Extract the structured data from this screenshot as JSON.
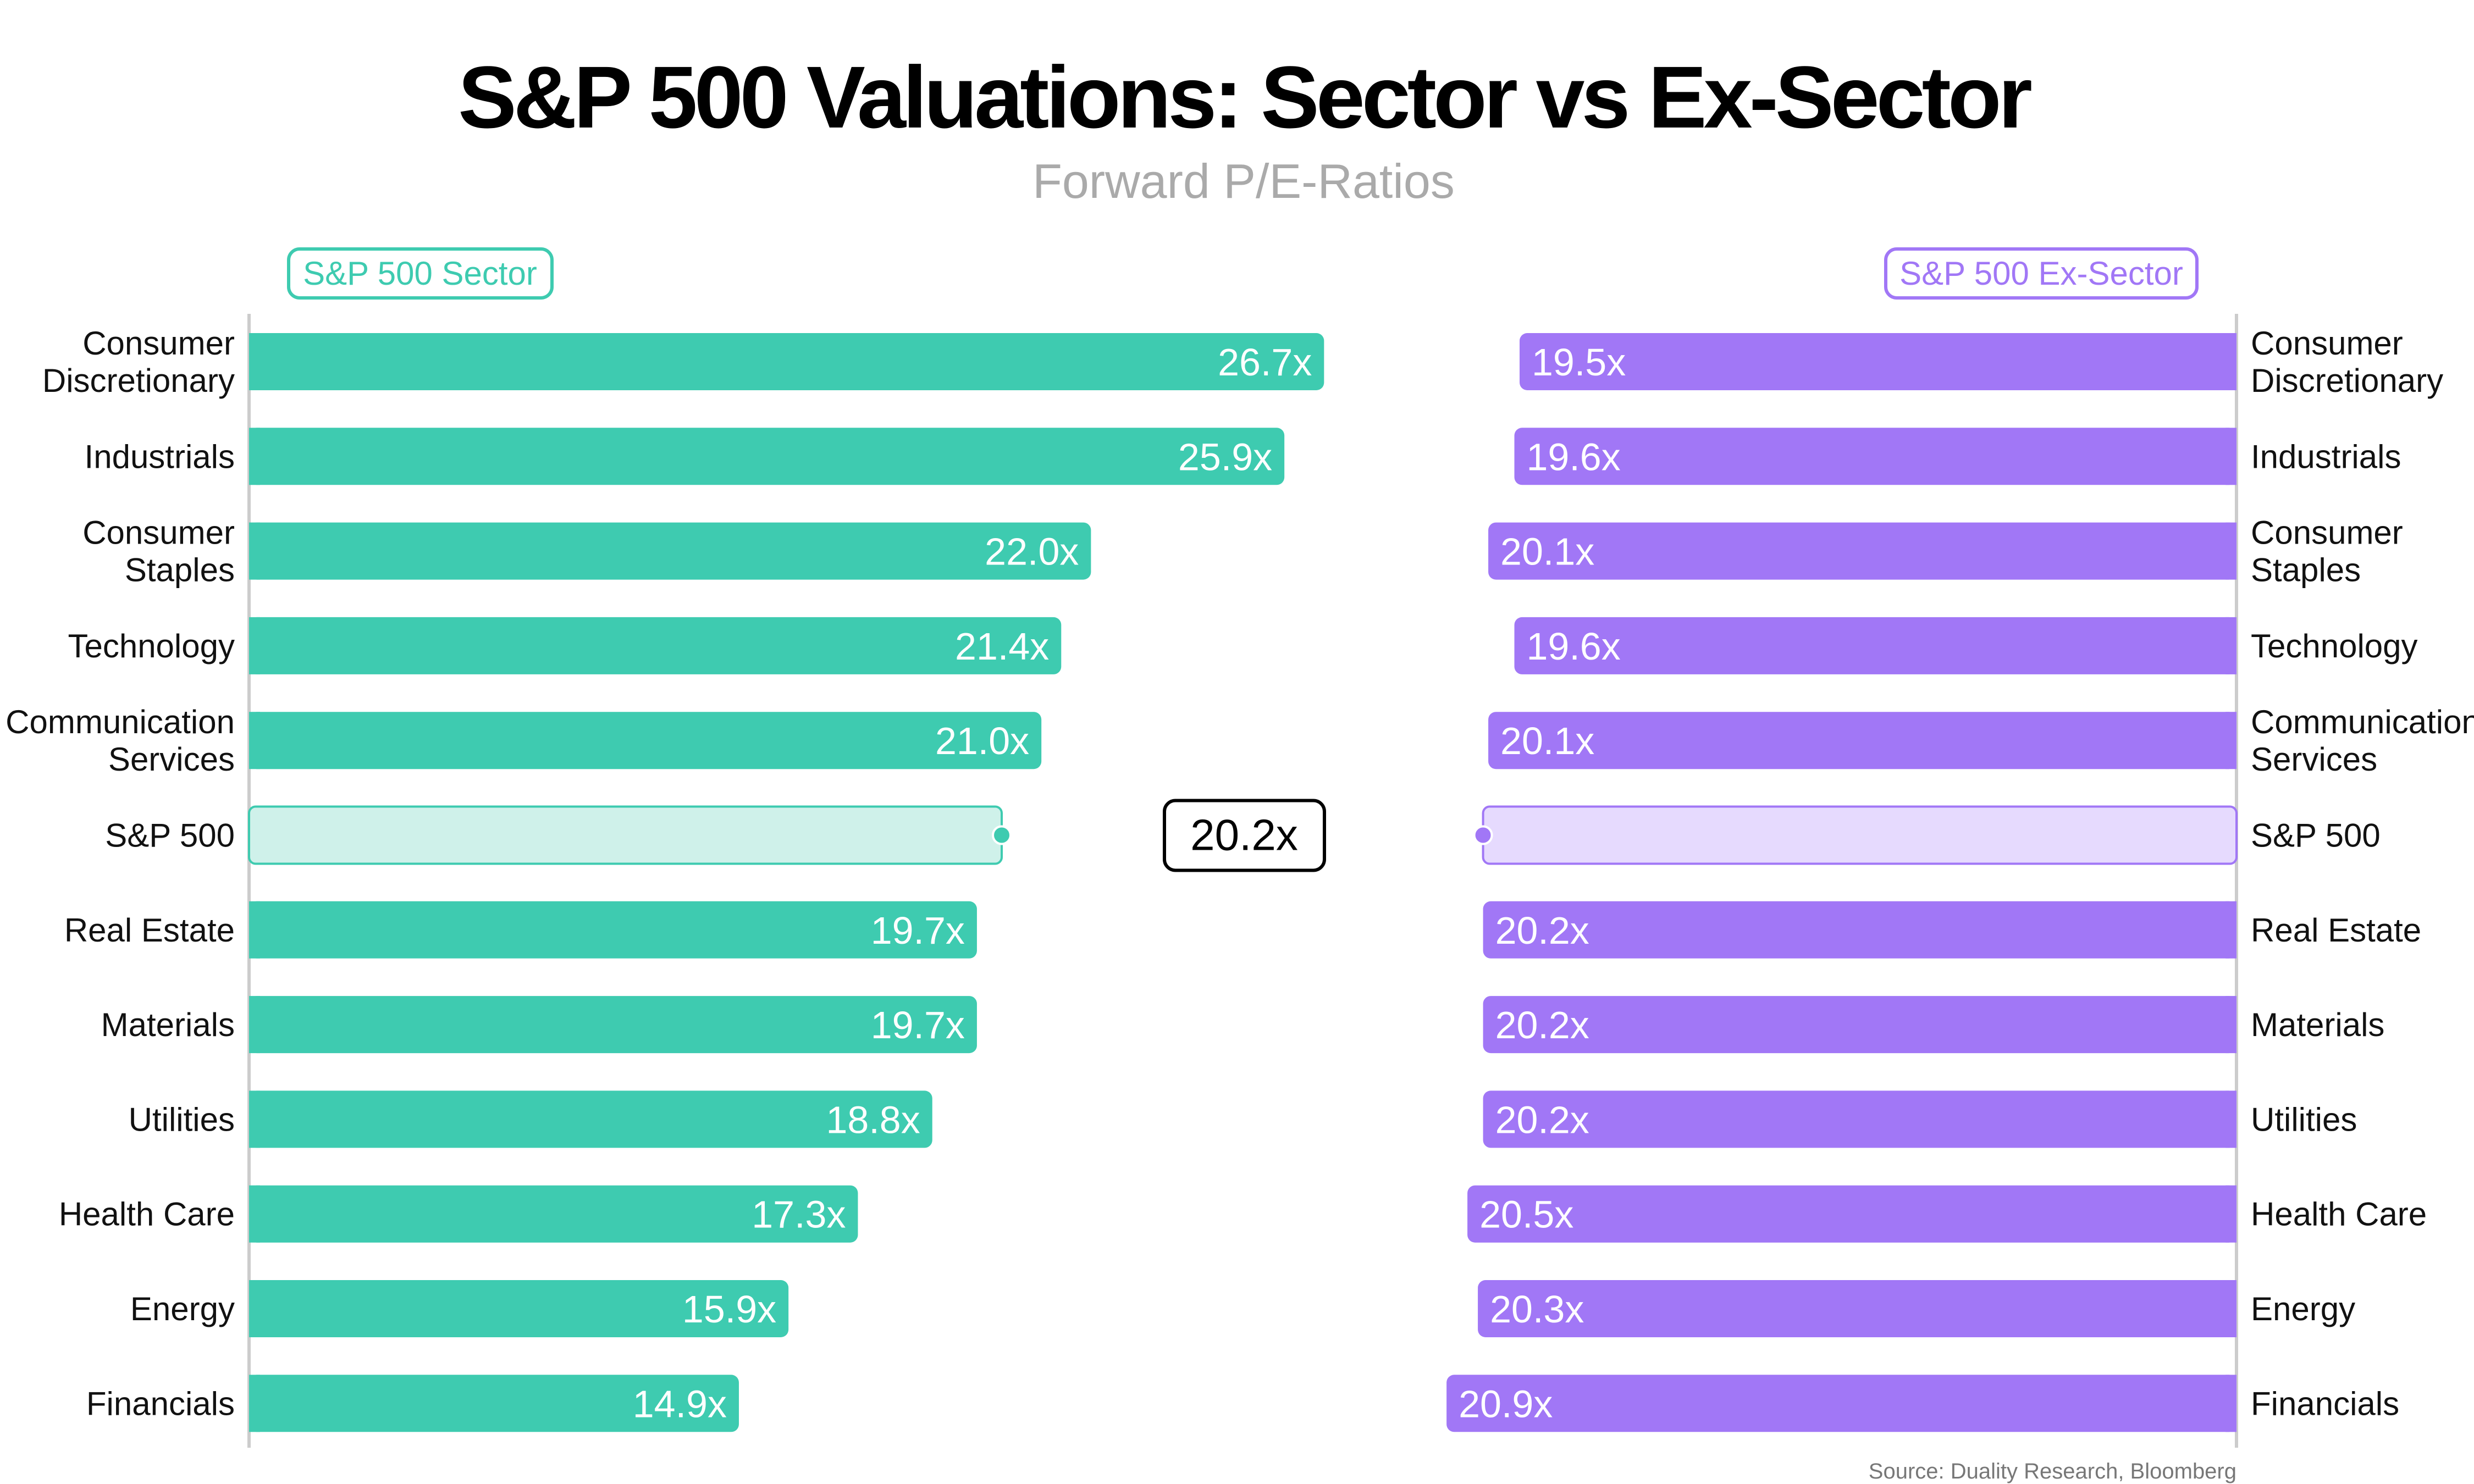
{
  "chart_data": {
    "type": "bar",
    "title": "S&P 500 Valuations: Sector vs Ex-Sector",
    "subtitle": "Forward P/E-Ratios",
    "source": "Source: Duality Research, Bloomberg",
    "value_suffix": "x",
    "categories": [
      [
        "Consumer",
        "Discretionary"
      ],
      [
        "Industrials"
      ],
      [
        "Consumer",
        "Staples"
      ],
      [
        "Technology"
      ],
      [
        "Communication",
        "Services"
      ],
      [
        "S&P 500"
      ],
      [
        "Real Estate"
      ],
      [
        "Materials"
      ],
      [
        "Utilities"
      ],
      [
        "Health Care"
      ],
      [
        "Energy"
      ],
      [
        "Financials"
      ]
    ],
    "benchmark_index": 5,
    "benchmark_label": "20.2x",
    "series": [
      {
        "name": "S&P 500 Sector",
        "color": "#3ECBB0",
        "light": "#CFF1EA",
        "side": "left",
        "values": [
          26.7,
          25.9,
          22.0,
          21.4,
          21.0,
          20.2,
          19.7,
          19.7,
          18.8,
          17.3,
          15.9,
          14.9
        ]
      },
      {
        "name": "S&P 500 Ex-Sector",
        "color": "#A177F6",
        "light": "#E6DAFE",
        "side": "right",
        "values": [
          19.5,
          19.6,
          20.1,
          19.6,
          20.1,
          20.2,
          20.2,
          20.2,
          20.2,
          20.5,
          20.3,
          20.9
        ]
      }
    ]
  }
}
